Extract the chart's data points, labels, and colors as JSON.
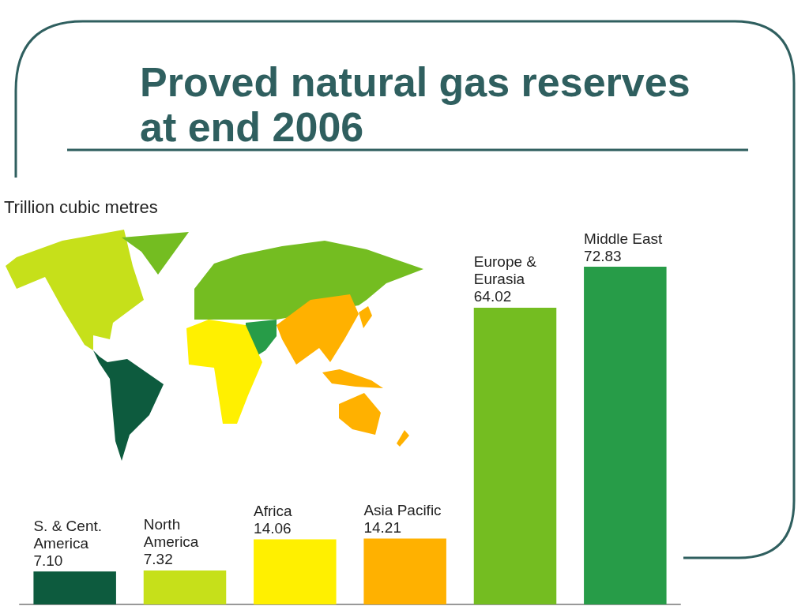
{
  "chart_data": {
    "type": "bar",
    "title": "Proved natural gas reserves at end 2006",
    "subtitle": "Trillion cubic metres",
    "categories": [
      "S. & Cent. America",
      "North America",
      "Africa",
      "Asia Pacific",
      "Europe & Eurasia",
      "Middle East"
    ],
    "values": [
      7.1,
      7.32,
      14.06,
      14.21,
      64.02,
      72.83
    ],
    "colors": [
      "#0d5b3e",
      "#c6e01a",
      "#fff000",
      "#ffb100",
      "#74bd21",
      "#279c48"
    ],
    "value_labels": [
      "7.10",
      "7.32",
      "14.06",
      "14.21",
      "64.02",
      "72.83"
    ],
    "tick_labels": false
  }
}
